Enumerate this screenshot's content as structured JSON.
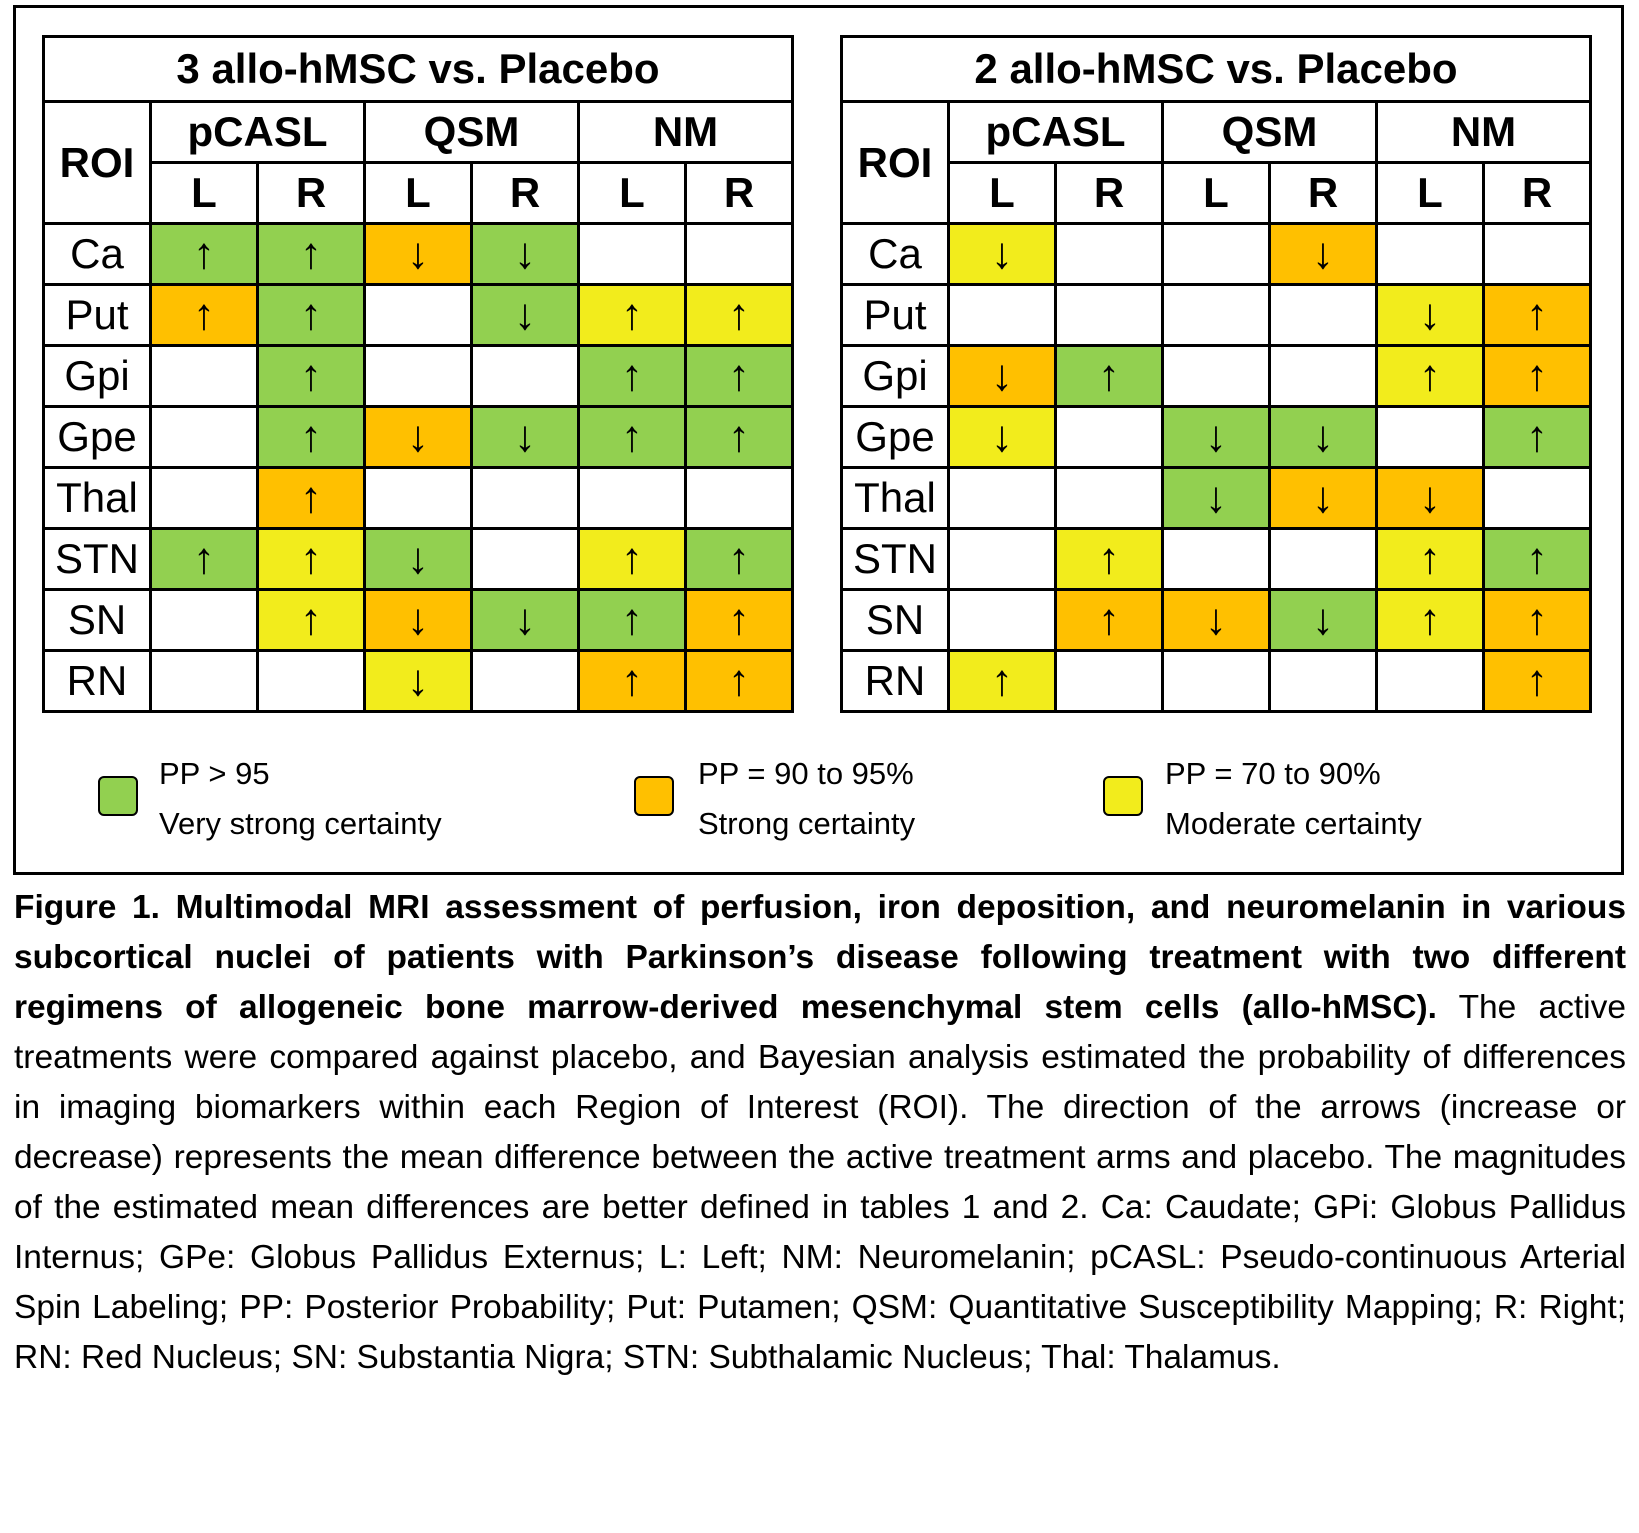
{
  "figure": {
    "tables": [
      {
        "title": "3 allo-hMSC vs. Placebo",
        "roi_header": "ROI",
        "modalities": [
          "pCASL",
          "QSM",
          "NM"
        ],
        "sides": [
          "L",
          "R",
          "L",
          "R",
          "L",
          "R"
        ],
        "rows": [
          {
            "roi": "Ca",
            "cells": [
              {
                "arrow": "↑",
                "color": "#92d050"
              },
              {
                "arrow": "↑",
                "color": "#92d050"
              },
              {
                "arrow": "↓",
                "color": "#ffc000"
              },
              {
                "arrow": "↓",
                "color": "#92d050"
              },
              null,
              null
            ]
          },
          {
            "roi": "Put",
            "cells": [
              {
                "arrow": "↑",
                "color": "#ffc000"
              },
              {
                "arrow": "↑",
                "color": "#92d050"
              },
              null,
              {
                "arrow": "↓",
                "color": "#92d050"
              },
              {
                "arrow": "↑",
                "color": "#f2ec1c"
              },
              {
                "arrow": "↑",
                "color": "#f2ec1c"
              }
            ]
          },
          {
            "roi": "Gpi",
            "cells": [
              null,
              {
                "arrow": "↑",
                "color": "#92d050"
              },
              null,
              null,
              {
                "arrow": "↑",
                "color": "#92d050"
              },
              {
                "arrow": "↑",
                "color": "#92d050"
              }
            ]
          },
          {
            "roi": "Gpe",
            "cells": [
              null,
              {
                "arrow": "↑",
                "color": "#92d050"
              },
              {
                "arrow": "↓",
                "color": "#ffc000"
              },
              {
                "arrow": "↓",
                "color": "#92d050"
              },
              {
                "arrow": "↑",
                "color": "#92d050"
              },
              {
                "arrow": "↑",
                "color": "#92d050"
              }
            ]
          },
          {
            "roi": "Thal",
            "cells": [
              null,
              {
                "arrow": "↑",
                "color": "#ffc000"
              },
              null,
              null,
              null,
              null
            ]
          },
          {
            "roi": "STN",
            "cells": [
              {
                "arrow": "↑",
                "color": "#92d050"
              },
              {
                "arrow": "↑",
                "color": "#f2ec1c"
              },
              {
                "arrow": "↓",
                "color": "#92d050"
              },
              null,
              {
                "arrow": "↑",
                "color": "#f2ec1c"
              },
              {
                "arrow": "↑",
                "color": "#92d050"
              }
            ]
          },
          {
            "roi": "SN",
            "cells": [
              null,
              {
                "arrow": "↑",
                "color": "#f2ec1c"
              },
              {
                "arrow": "↓",
                "color": "#ffc000"
              },
              {
                "arrow": "↓",
                "color": "#92d050"
              },
              {
                "arrow": "↑",
                "color": "#92d050"
              },
              {
                "arrow": "↑",
                "color": "#ffc000"
              }
            ]
          },
          {
            "roi": "RN",
            "cells": [
              null,
              null,
              {
                "arrow": "↓",
                "color": "#f2ec1c"
              },
              null,
              {
                "arrow": "↑",
                "color": "#ffc000"
              },
              {
                "arrow": "↑",
                "color": "#ffc000"
              }
            ]
          }
        ]
      },
      {
        "title": "2 allo-hMSC vs. Placebo",
        "roi_header": "ROI",
        "modalities": [
          "pCASL",
          "QSM",
          "NM"
        ],
        "sides": [
          "L",
          "R",
          "L",
          "R",
          "L",
          "R"
        ],
        "rows": [
          {
            "roi": "Ca",
            "cells": [
              {
                "arrow": "↓",
                "color": "#f2ec1c"
              },
              null,
              null,
              {
                "arrow": "↓",
                "color": "#ffc000"
              },
              null,
              null
            ]
          },
          {
            "roi": "Put",
            "cells": [
              null,
              null,
              null,
              null,
              {
                "arrow": "↓",
                "color": "#f2ec1c"
              },
              {
                "arrow": "↑",
                "color": "#ffc000"
              }
            ]
          },
          {
            "roi": "Gpi",
            "cells": [
              {
                "arrow": "↓",
                "color": "#ffc000"
              },
              {
                "arrow": "↑",
                "color": "#92d050"
              },
              null,
              null,
              {
                "arrow": "↑",
                "color": "#f2ec1c"
              },
              {
                "arrow": "↑",
                "color": "#ffc000"
              }
            ]
          },
          {
            "roi": "Gpe",
            "cells": [
              {
                "arrow": "↓",
                "color": "#f2ec1c"
              },
              null,
              {
                "arrow": "↓",
                "color": "#92d050"
              },
              {
                "arrow": "↓",
                "color": "#92d050"
              },
              null,
              {
                "arrow": "↑",
                "color": "#92d050"
              }
            ]
          },
          {
            "roi": "Thal",
            "cells": [
              null,
              null,
              {
                "arrow": "↓",
                "color": "#92d050"
              },
              {
                "arrow": "↓",
                "color": "#ffc000"
              },
              {
                "arrow": "↓",
                "color": "#ffc000"
              },
              null
            ]
          },
          {
            "roi": "STN",
            "cells": [
              null,
              {
                "arrow": "↑",
                "color": "#f2ec1c"
              },
              null,
              null,
              {
                "arrow": "↑",
                "color": "#f2ec1c"
              },
              {
                "arrow": "↑",
                "color": "#92d050"
              }
            ]
          },
          {
            "roi": "SN",
            "cells": [
              null,
              {
                "arrow": "↑",
                "color": "#ffc000"
              },
              {
                "arrow": "↓",
                "color": "#ffc000"
              },
              {
                "arrow": "↓",
                "color": "#92d050"
              },
              {
                "arrow": "↑",
                "color": "#f2ec1c"
              },
              {
                "arrow": "↑",
                "color": "#ffc000"
              }
            ]
          },
          {
            "roi": "RN",
            "cells": [
              {
                "arrow": "↑",
                "color": "#f2ec1c"
              },
              null,
              null,
              null,
              null,
              {
                "arrow": "↑",
                "color": "#ffc000"
              }
            ]
          }
        ]
      }
    ],
    "legend": [
      {
        "color": "#92d050",
        "label": "PP > 95",
        "description": "Very strong certainty"
      },
      {
        "color": "#ffc000",
        "label": "PP = 90 to 95%",
        "description": "Strong certainty"
      },
      {
        "color": "#f2ec1c",
        "label": "PP = 70 to 90%",
        "description": "Moderate certainty"
      }
    ],
    "caption": {
      "bold": "Figure 1. Multimodal MRI assessment of perfusion, iron deposition, and neuromelanin in various subcortical nuclei of patients with Parkinson’s disease following treatment with two different regimens of allogeneic bone marrow-derived mesenchymal stem cells (allo-hMSC).",
      "text": "The active treatments were compared against placebo, and Bayesian analysis estimated the probability of differences in imaging biomarkers within each Region of Interest (ROI). The direction of the arrows (increase or decrease) represents the mean difference between the active treatment arms and placebo. The magnitudes of the estimated mean differences are better defined in tables 1 and 2. Ca: Caudate; GPi: Globus Pallidus Internus; GPe: Globus Pallidus Externus; L: Left; NM: Neuromelanin; pCASL: Pseudo-continuous Arterial Spin Labeling; PP: Posterior Probability; Put: Putamen; QSM: Quantitative Susceptibility Mapping; R: Right; RN: Red Nucleus; SN: Substantia Nigra; STN: Subthalamic Nucleus; Thal: Thalamus."
    }
  }
}
